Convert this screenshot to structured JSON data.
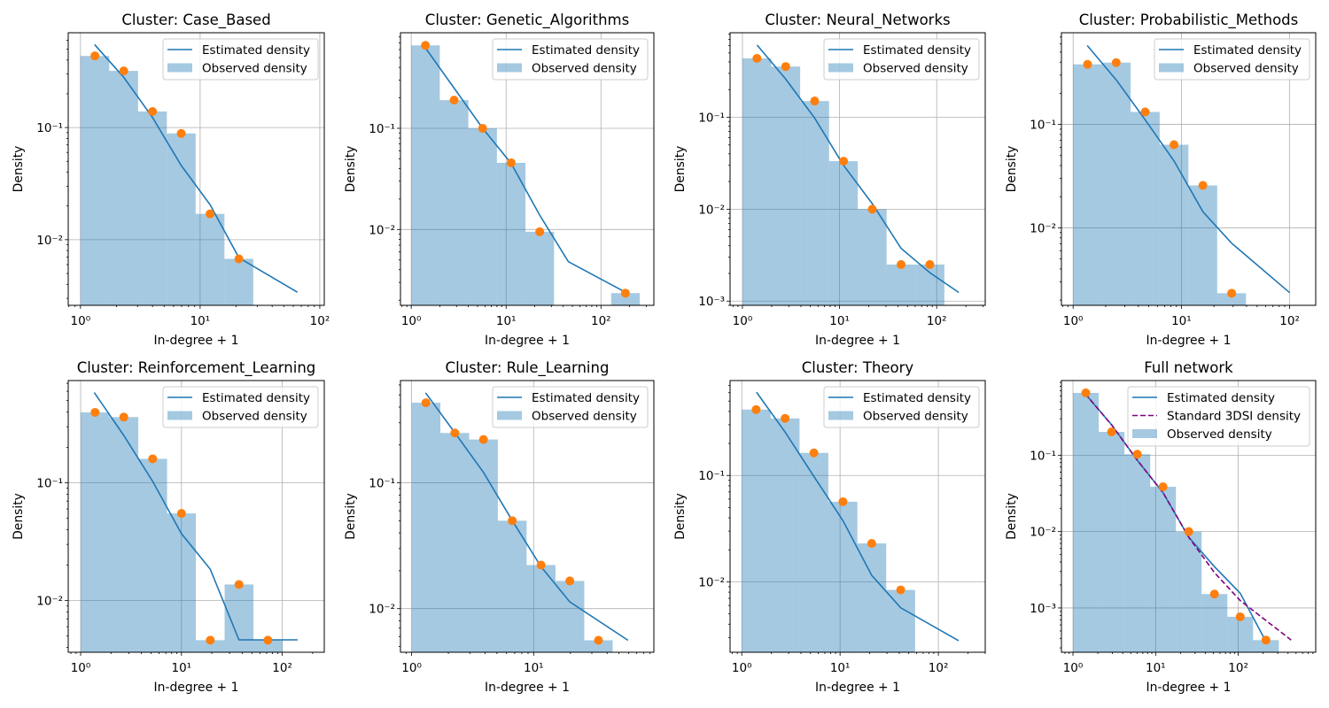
{
  "figure": {
    "colors": {
      "histogram": "#1f77b4",
      "histogram_opacity": 0.4,
      "estimated_line": "#1f77b4",
      "observed_points": "#ff7f0e",
      "standard_3dsi_line": "#800080",
      "grid": "#b0b0b0"
    }
  },
  "chart_data": [
    {
      "type": "bar+line+scatter",
      "title": "Cluster: Case_Based",
      "xlabel": "In-degree + 1",
      "ylabel": "Density",
      "xscale": "log",
      "yscale": "log",
      "grid": true,
      "legend_position": "top-right",
      "xlim": [
        0.79,
        109
      ],
      "ylim": [
        0.0026,
        0.7
      ],
      "xticks": [
        {
          "value": 1,
          "label": "10⁰"
        },
        {
          "value": 10,
          "label": "10¹"
        },
        {
          "value": 100,
          "label": "10²"
        }
      ],
      "yticks": [
        {
          "value": 0.1,
          "label": "10⁻¹"
        },
        {
          "value": 0.01,
          "label": "10⁻²"
        }
      ],
      "legend": [
        "Estimated density",
        "Observed density"
      ],
      "histogram": {
        "bin_edges": [
          1,
          1.74,
          3.03,
          5.27,
          9.17,
          15.96,
          27.8
        ],
        "density": [
          0.435,
          0.32,
          0.139,
          0.0886,
          0.017,
          0.00675
        ]
      },
      "observed_points": {
        "x": [
          1.32,
          2.3,
          4.0,
          6.95,
          12.1,
          21.1
        ],
        "y": [
          0.435,
          0.32,
          0.139,
          0.0886,
          0.017,
          0.00675
        ]
      },
      "estimated_density": {
        "x": [
          1.31,
          2.3,
          4.0,
          6.95,
          12.1,
          21.1,
          65
        ],
        "y": [
          0.55,
          0.28,
          0.123,
          0.046,
          0.0205,
          0.0069,
          0.0034
        ]
      }
    },
    {
      "type": "bar+line+scatter",
      "title": "Cluster: Genetic_Algorithms",
      "xlabel": "In-degree + 1",
      "ylabel": "Density",
      "xscale": "log",
      "yscale": "log",
      "grid": true,
      "legend_position": "top-right",
      "xlim": [
        0.77,
        361
      ],
      "ylim": [
        0.00178,
        0.88
      ],
      "xticks": [
        {
          "value": 1,
          "label": "10⁰"
        },
        {
          "value": 10,
          "label": "10¹"
        },
        {
          "value": 100,
          "label": "10²"
        }
      ],
      "yticks": [
        {
          "value": 0.1,
          "label": "10⁻¹"
        },
        {
          "value": 0.01,
          "label": "10⁻²"
        }
      ],
      "legend": [
        "Estimated density",
        "Observed density"
      ],
      "histogram": {
        "bin_edges": [
          1,
          2,
          4,
          8,
          16,
          32,
          64,
          128,
          256
        ],
        "density": [
          0.66,
          0.19,
          0.1,
          0.0456,
          0.0095,
          null,
          null,
          0.00235
        ]
      },
      "observed_points": {
        "x": [
          1.41,
          2.83,
          5.66,
          11.3,
          22.6,
          181
        ],
        "y": [
          0.66,
          0.19,
          0.1,
          0.0456,
          0.0095,
          0.00235
        ]
      },
      "estimated_density": {
        "x": [
          1.41,
          2.83,
          5.66,
          11.3,
          22.6,
          45.3,
          181
        ],
        "y": [
          0.625,
          0.25,
          0.1,
          0.045,
          0.0139,
          0.0048,
          0.0024
        ]
      }
    },
    {
      "type": "bar+line+scatter",
      "title": "Cluster: Neural_Networks",
      "xlabel": "In-degree + 1",
      "ylabel": "Density",
      "xscale": "log",
      "yscale": "log",
      "grid": true,
      "legend_position": "top-right",
      "xlim": [
        0.746,
        316
      ],
      "ylim": [
        0.0009,
        0.83
      ],
      "xticks": [
        {
          "value": 1,
          "label": "10⁰"
        },
        {
          "value": 10,
          "label": "10¹"
        },
        {
          "value": 100,
          "label": "10²"
        }
      ],
      "yticks": [
        {
          "value": 0.1,
          "label": "10⁻¹"
        },
        {
          "value": 0.01,
          "label": "10⁻²"
        },
        {
          "value": 0.001,
          "label": "10⁻³"
        }
      ],
      "legend": [
        "Estimated density",
        "Observed density"
      ],
      "histogram": {
        "bin_edges": [
          1,
          1.98,
          3.93,
          7.8,
          15.4,
          30.5,
          60.5,
          120
        ],
        "density": [
          0.437,
          0.356,
          0.15,
          0.0333,
          0.01,
          0.0025,
          0.0025
        ]
      },
      "observed_points": {
        "x": [
          1.41,
          2.79,
          5.54,
          11,
          21.7,
          43,
          85
        ],
        "y": [
          0.437,
          0.356,
          0.15,
          0.0333,
          0.01,
          0.0025,
          0.0025
        ]
      },
      "estimated_density": {
        "x": [
          1.417,
          2.79,
          5.54,
          11,
          21.7,
          43,
          85,
          169
        ],
        "y": [
          0.61,
          0.26,
          0.098,
          0.03,
          0.0115,
          0.00375,
          0.00204,
          0.00124
        ]
      }
    },
    {
      "type": "bar+line+scatter",
      "title": "Cluster: Probabilistic_Methods",
      "xlabel": "In-degree + 1",
      "ylabel": "Density",
      "xscale": "log",
      "yscale": "log",
      "grid": true,
      "legend_position": "top-right",
      "xlim": [
        0.78,
        174
      ],
      "ylim": [
        0.00178,
        0.77
      ],
      "xticks": [
        {
          "value": 1,
          "label": "10⁰"
        },
        {
          "value": 10,
          "label": "10¹"
        },
        {
          "value": 100,
          "label": "10²"
        }
      ],
      "yticks": [
        {
          "value": 0.1,
          "label": "10⁻¹"
        },
        {
          "value": 0.01,
          "label": "10⁻²"
        }
      ],
      "legend": [
        "Estimated density",
        "Observed density"
      ],
      "histogram": {
        "bin_edges": [
          1,
          1.845,
          3.4,
          6.3,
          11.6,
          21.4,
          39.5
        ],
        "density": [
          0.381,
          0.396,
          0.132,
          0.0636,
          0.0257,
          0.00233
        ]
      },
      "observed_points": {
        "x": [
          1.36,
          2.5,
          4.63,
          8.55,
          15.8,
          29.1
        ],
        "y": [
          0.381,
          0.396,
          0.132,
          0.0636,
          0.0257,
          0.00233
        ]
      },
      "estimated_density": {
        "x": [
          1.35,
          2.5,
          4.63,
          8.55,
          15.8,
          29.1,
          100
        ],
        "y": [
          0.58,
          0.27,
          0.111,
          0.0443,
          0.0143,
          0.0071,
          0.00236
        ]
      }
    },
    {
      "type": "bar+line+scatter",
      "title": "Cluster: Reinforcement_Learning",
      "xlabel": "In-degree + 1",
      "ylabel": "Density",
      "xscale": "log",
      "yscale": "log",
      "grid": true,
      "legend_position": "top-right",
      "xlim": [
        0.753,
        261
      ],
      "ylim": [
        0.00364,
        0.74
      ],
      "xticks": [
        {
          "value": 1,
          "label": "10⁰"
        },
        {
          "value": 10,
          "label": "10¹"
        },
        {
          "value": 100,
          "label": "10²"
        }
      ],
      "yticks": [
        {
          "value": 0.1,
          "label": "10⁻¹"
        },
        {
          "value": 0.01,
          "label": "10⁻²"
        }
      ],
      "legend": [
        "Estimated density",
        "Observed density"
      ],
      "histogram": {
        "bin_edges": [
          1,
          1.93,
          3.73,
          7.2,
          13.9,
          26.8,
          51.8,
          100
        ],
        "density": [
          0.397,
          0.362,
          0.16,
          0.055,
          0.00461,
          0.0137,
          0.00461
        ]
      },
      "observed_points": {
        "x": [
          1.39,
          2.68,
          5.18,
          10,
          19.3,
          37.2,
          72
        ],
        "y": [
          0.397,
          0.362,
          0.16,
          0.055,
          0.00461,
          0.0137,
          0.00461
        ]
      },
      "estimated_density": {
        "x": [
          1.365,
          2.68,
          5.18,
          10,
          19.3,
          37.2,
          142
        ],
        "y": [
          0.585,
          0.253,
          0.103,
          0.037,
          0.0185,
          0.00464,
          0.00464
        ]
      }
    },
    {
      "type": "bar+line+scatter",
      "title": "Cluster: Rule_Learning",
      "xlabel": "In-degree + 1",
      "ylabel": "Density",
      "xscale": "log",
      "yscale": "log",
      "grid": true,
      "legend_position": "top-right",
      "xlim": [
        0.81,
        96.7
      ],
      "ylim": [
        0.0045,
        0.65
      ],
      "xticks": [
        {
          "value": 1,
          "label": "10⁰"
        },
        {
          "value": 10,
          "label": "10¹"
        }
      ],
      "yticks": [
        {
          "value": 0.1,
          "label": "10⁻¹"
        },
        {
          "value": 0.01,
          "label": "10⁻²"
        }
      ],
      "legend": [
        "Estimated density",
        "Observed density"
      ],
      "histogram": {
        "bin_edges": [
          1,
          1.72,
          2.96,
          5.09,
          8.76,
          15.1,
          26,
          44.4
        ],
        "density": [
          0.433,
          0.249,
          0.221,
          0.05,
          0.0222,
          0.0166,
          0.0056
        ]
      },
      "observed_points": {
        "x": [
          1.31,
          2.26,
          3.88,
          6.68,
          11.5,
          19.8,
          34
        ],
        "y": [
          0.433,
          0.249,
          0.221,
          0.05,
          0.0222,
          0.0166,
          0.0056
        ]
      },
      "estimated_density": {
        "x": [
          1.3,
          2.26,
          3.88,
          6.68,
          11.5,
          19.8,
          59.3
        ],
        "y": [
          0.52,
          0.25,
          0.121,
          0.05,
          0.0215,
          0.0113,
          0.0056
        ]
      }
    },
    {
      "type": "bar+line+scatter",
      "title": "Cluster: Theory",
      "xlabel": "In-degree + 1",
      "ylabel": "Density",
      "xscale": "log",
      "yscale": "log",
      "grid": true,
      "legend_position": "top-right",
      "xlim": [
        0.76,
        300
      ],
      "ylim": [
        0.00218,
        0.78
      ],
      "xticks": [
        {
          "value": 1,
          "label": "10⁰"
        },
        {
          "value": 10,
          "label": "10¹"
        },
        {
          "value": 100,
          "label": "10²"
        }
      ],
      "yticks": [
        {
          "value": 0.1,
          "label": "10⁻¹"
        },
        {
          "value": 0.01,
          "label": "10⁻²"
        }
      ],
      "legend": [
        "Estimated density",
        "Observed density"
      ],
      "histogram": {
        "bin_edges": [
          1,
          1.97,
          3.87,
          7.6,
          15,
          29.5,
          58
        ],
        "density": [
          0.416,
          0.344,
          0.163,
          0.0566,
          0.023,
          0.0084
        ]
      },
      "observed_points": {
        "x": [
          1.4,
          2.76,
          5.42,
          10.7,
          21,
          41.4
        ],
        "y": [
          0.416,
          0.344,
          0.163,
          0.0566,
          0.023,
          0.0084
        ]
      },
      "estimated_density": {
        "x": [
          1.41,
          2.76,
          5.42,
          10.7,
          21,
          41.4,
          161
        ],
        "y": [
          0.607,
          0.256,
          0.098,
          0.0376,
          0.0115,
          0.0057,
          0.0028
        ]
      }
    },
    {
      "type": "bar+line+scatter",
      "title": "Full network",
      "xlabel": "In-degree + 1",
      "ylabel": "Density",
      "xscale": "log",
      "yscale": "log",
      "grid": true,
      "legend_position": "top-right",
      "xlim": [
        0.725,
        865
      ],
      "ylim": [
        0.000263,
        0.95
      ],
      "xticks": [
        {
          "value": 1,
          "label": "10⁰"
        },
        {
          "value": 10,
          "label": "10¹"
        },
        {
          "value": 100,
          "label": "10²"
        }
      ],
      "yticks": [
        {
          "value": 0.1,
          "label": "10⁻¹"
        },
        {
          "value": 0.01,
          "label": "10⁻²"
        },
        {
          "value": 0.001,
          "label": "10⁻³"
        }
      ],
      "legend": [
        "Estimated density",
        "Standard 3DSI density",
        "Observed density"
      ],
      "histogram": {
        "bin_edges": [
          1,
          2.05,
          4.2,
          8.6,
          17.6,
          36,
          73.8,
          151,
          310
        ],
        "density": [
          0.655,
          0.202,
          0.103,
          0.0386,
          0.01,
          0.00152,
          0.000766,
          0.000379
        ]
      },
      "observed_points": {
        "x": [
          1.43,
          2.93,
          6.0,
          12.3,
          25.2,
          51.5,
          105.6,
          216
        ],
        "y": [
          0.655,
          0.202,
          0.103,
          0.0386,
          0.01,
          0.00152,
          0.000766,
          0.000379
        ]
      },
      "estimated_density": {
        "x": [
          1.4,
          2.93,
          6,
          12.3,
          25.2,
          51.5,
          105.6,
          213
        ],
        "y": [
          0.64,
          0.25,
          0.086,
          0.0323,
          0.0084,
          0.00347,
          0.00156,
          0.000375
        ]
      },
      "standard_3dsi_density": {
        "x": [
          1.4,
          2.93,
          6,
          12.3,
          25.2,
          51.5,
          105.6,
          437
        ],
        "y": [
          0.64,
          0.25,
          0.086,
          0.0323,
          0.0084,
          0.0029,
          0.00125,
          0.00038
        ]
      }
    }
  ]
}
